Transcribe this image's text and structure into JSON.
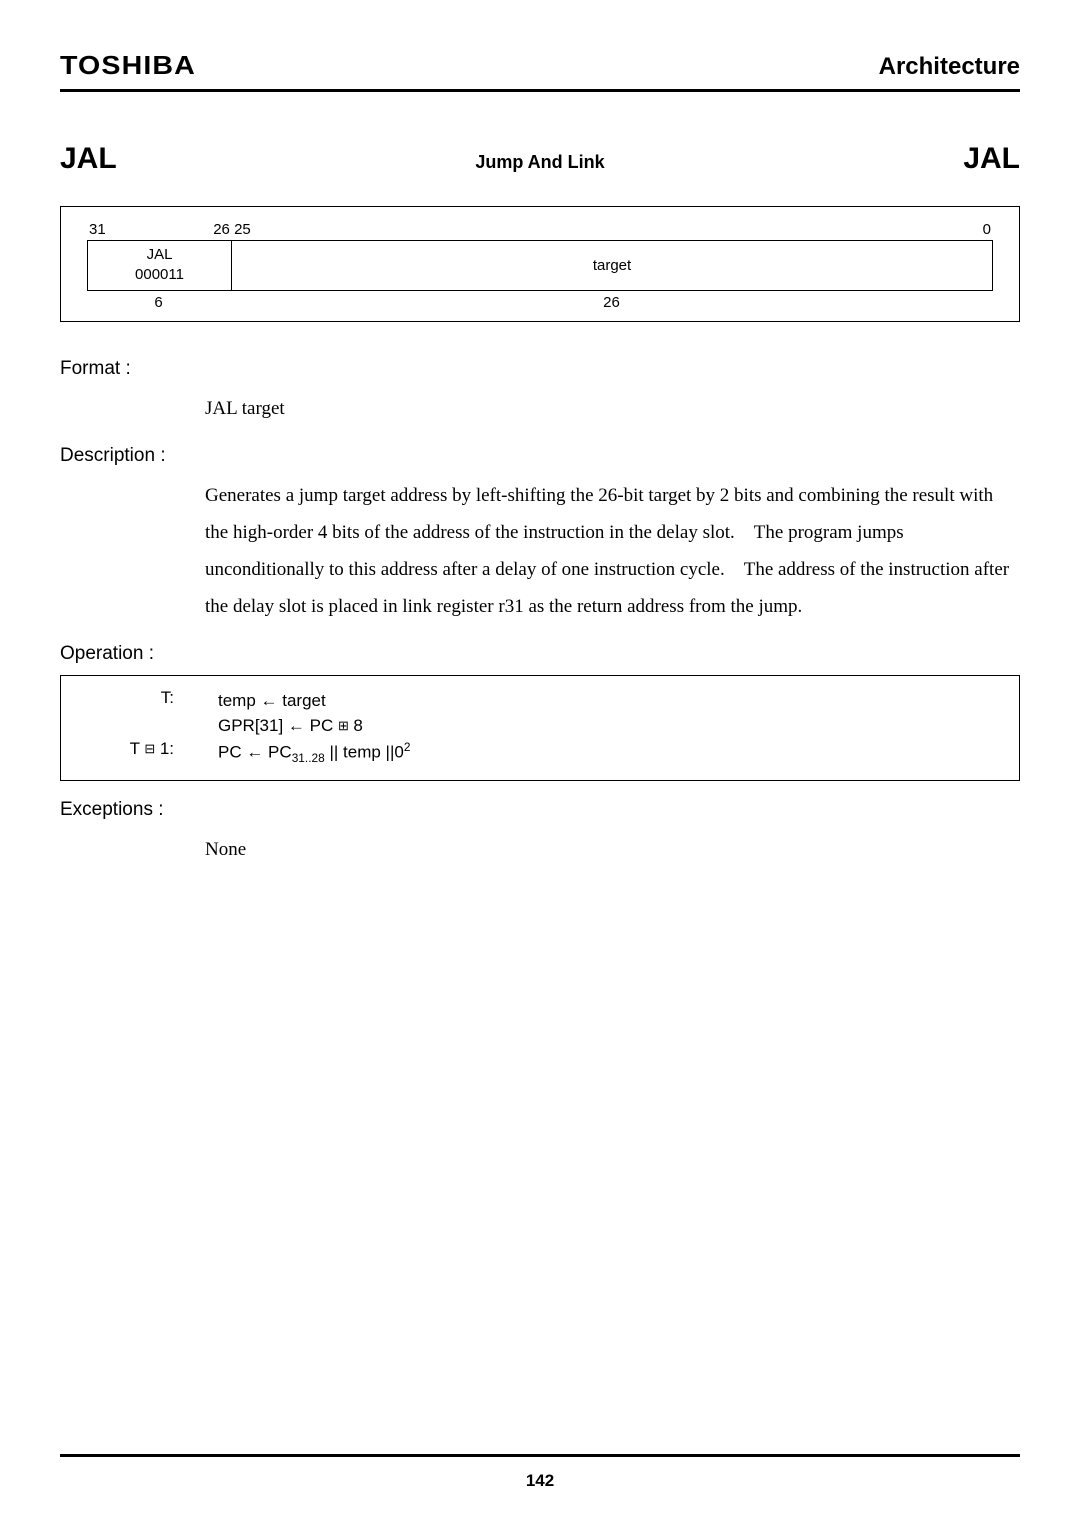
{
  "header": {
    "brand": "TOSHIBA",
    "section": "Architecture"
  },
  "instr": {
    "mnemonic_left": "JAL",
    "title": "Jump And Link",
    "mnemonic_right": "JAL"
  },
  "encoding": {
    "bit_high": "31",
    "bit_split": "26 25",
    "bit_low": "0",
    "opcode_name": "JAL",
    "opcode_bits": "000011",
    "target_label": "target",
    "width_opcode": "6",
    "width_target": "26"
  },
  "labels": {
    "format": "Format :",
    "description": "Description :",
    "operation": "Operation :",
    "exceptions": "Exceptions :"
  },
  "format_text": "JAL target",
  "description_text": "Generates a jump target address by left-shifting the 26-bit target by 2 bits and combining the result with the high-order 4 bits of the address of the instruction in the delay slot. The program jumps unconditionally to this address after a delay of one instruction cycle. The address of the instruction after the delay slot is placed in link register r31 as the return address from the jump.",
  "operation": {
    "t_label": "T:",
    "t_line1": "temp ← target",
    "t_line2_pre": "GPR[31] ← PC ",
    "t_line2_icon": "⊞",
    "t_line2_post": " 8",
    "t1_label_pre": "T ",
    "t1_label_icon": "⊟",
    "t1_label_post": " 1:",
    "t1_line_pre": "PC ← PC",
    "t1_sub": "31..28",
    "t1_line_mid": " || temp ||0",
    "t1_sup": "2"
  },
  "exceptions_text": "None",
  "page_number": "142"
}
